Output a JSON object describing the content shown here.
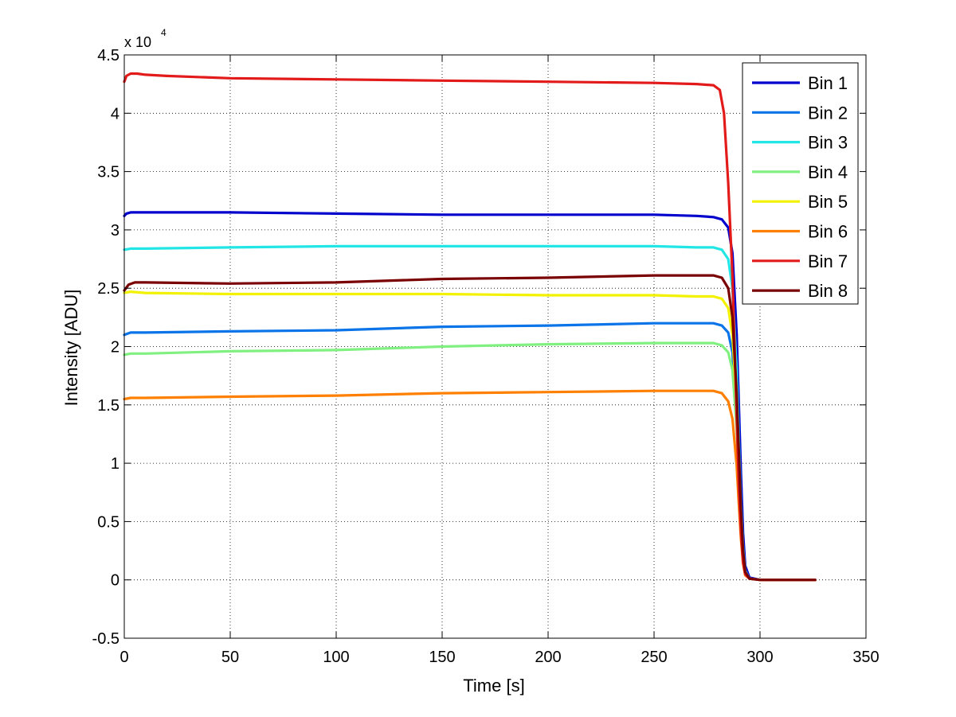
{
  "chart_data": {
    "type": "line",
    "title": "",
    "xlabel": "Time [s]",
    "ylabel": "Intensity [ADU]",
    "exponent_label": {
      "base": "x 10",
      "exp": "4"
    },
    "xlim": [
      0,
      350
    ],
    "ylim": [
      -0.5,
      4.5
    ],
    "xticks": [
      0,
      50,
      100,
      150,
      200,
      250,
      300,
      350
    ],
    "xtick_labels": [
      "0",
      "50",
      "100",
      "150",
      "200",
      "250",
      "300",
      "350"
    ],
    "yticks": [
      -0.5,
      0,
      0.5,
      1,
      1.5,
      2,
      2.5,
      3,
      3.5,
      4,
      4.5
    ],
    "ytick_labels": [
      "-0.5",
      "0",
      "0.5",
      "1",
      "1.5",
      "2",
      "2.5",
      "3",
      "3.5",
      "4",
      "4.5"
    ],
    "grid": true,
    "legend_position": "top-right",
    "series": [
      {
        "name": "Bin 1",
        "color": "#0000cc",
        "x": [
          0,
          1,
          3,
          10,
          50,
          100,
          150,
          200,
          250,
          270,
          278,
          282,
          285,
          287,
          289,
          290,
          291,
          292,
          293,
          295,
          300,
          326
        ],
        "y": [
          3.12,
          3.14,
          3.15,
          3.15,
          3.15,
          3.14,
          3.13,
          3.13,
          3.13,
          3.12,
          3.11,
          3.09,
          3.02,
          2.8,
          2.1,
          1.5,
          0.9,
          0.4,
          0.12,
          0.02,
          0,
          0
        ]
      },
      {
        "name": "Bin 2",
        "color": "#0a74e8",
        "x": [
          0,
          3,
          10,
          50,
          100,
          150,
          200,
          250,
          270,
          278,
          282,
          285,
          287,
          289,
          290,
          291,
          292,
          293,
          295,
          300,
          326
        ],
        "y": [
          2.1,
          2.12,
          2.12,
          2.13,
          2.14,
          2.17,
          2.18,
          2.2,
          2.2,
          2.2,
          2.18,
          2.12,
          1.95,
          1.4,
          0.9,
          0.5,
          0.2,
          0.06,
          0.01,
          0,
          0
        ]
      },
      {
        "name": "Bin 3",
        "color": "#22e6e6",
        "x": [
          0,
          3,
          10,
          50,
          100,
          150,
          200,
          250,
          270,
          278,
          282,
          285,
          287,
          289,
          290,
          291,
          292,
          293,
          295,
          300,
          326
        ],
        "y": [
          2.83,
          2.84,
          2.84,
          2.85,
          2.86,
          2.86,
          2.86,
          2.86,
          2.85,
          2.85,
          2.83,
          2.75,
          2.5,
          1.8,
          1.2,
          0.65,
          0.28,
          0.08,
          0.01,
          0,
          0
        ]
      },
      {
        "name": "Bin 4",
        "color": "#80f080",
        "x": [
          0,
          3,
          10,
          50,
          100,
          150,
          200,
          250,
          270,
          278,
          282,
          285,
          287,
          289,
          290,
          291,
          292,
          293,
          295,
          300,
          326
        ],
        "y": [
          1.93,
          1.94,
          1.94,
          1.96,
          1.97,
          2.0,
          2.02,
          2.03,
          2.03,
          2.03,
          2.01,
          1.95,
          1.8,
          1.3,
          0.85,
          0.45,
          0.18,
          0.05,
          0.01,
          0,
          0
        ]
      },
      {
        "name": "Bin 5",
        "color": "#f2f200",
        "x": [
          0,
          3,
          10,
          50,
          100,
          150,
          200,
          250,
          270,
          278,
          282,
          285,
          287,
          289,
          290,
          291,
          292,
          293,
          295,
          300,
          326
        ],
        "y": [
          2.46,
          2.47,
          2.46,
          2.45,
          2.45,
          2.45,
          2.44,
          2.44,
          2.43,
          2.43,
          2.41,
          2.33,
          2.1,
          1.5,
          1.0,
          0.55,
          0.22,
          0.06,
          0.01,
          0,
          0
        ]
      },
      {
        "name": "Bin 6",
        "color": "#ff8000",
        "x": [
          0,
          3,
          10,
          50,
          100,
          150,
          200,
          250,
          270,
          278,
          282,
          285,
          287,
          289,
          290,
          291,
          292,
          293,
          295,
          300,
          326
        ],
        "y": [
          1.55,
          1.56,
          1.56,
          1.57,
          1.58,
          1.6,
          1.61,
          1.62,
          1.62,
          1.62,
          1.6,
          1.53,
          1.38,
          0.98,
          0.65,
          0.35,
          0.14,
          0.04,
          0.01,
          0,
          0
        ]
      },
      {
        "name": "Bin 7",
        "color": "#e31a1a",
        "x": [
          0,
          1,
          3,
          6,
          10,
          20,
          50,
          100,
          150,
          200,
          250,
          270,
          278,
          281,
          283,
          285,
          287,
          288,
          289,
          290,
          291,
          292,
          293,
          295,
          300,
          326
        ],
        "y": [
          4.27,
          4.32,
          4.34,
          4.34,
          4.33,
          4.32,
          4.3,
          4.29,
          4.28,
          4.27,
          4.26,
          4.25,
          4.24,
          4.2,
          4.0,
          3.4,
          2.6,
          2.0,
          1.4,
          0.8,
          0.4,
          0.15,
          0.05,
          0.01,
          0,
          0
        ]
      },
      {
        "name": "Bin 8",
        "color": "#7a0000",
        "x": [
          0,
          2,
          5,
          10,
          50,
          100,
          150,
          200,
          250,
          270,
          278,
          282,
          285,
          287,
          289,
          290,
          291,
          292,
          293,
          295,
          300,
          326
        ],
        "y": [
          2.48,
          2.53,
          2.55,
          2.55,
          2.54,
          2.55,
          2.58,
          2.59,
          2.61,
          2.61,
          2.61,
          2.59,
          2.5,
          2.25,
          1.6,
          1.1,
          0.6,
          0.25,
          0.07,
          0.01,
          0,
          0
        ]
      }
    ]
  }
}
